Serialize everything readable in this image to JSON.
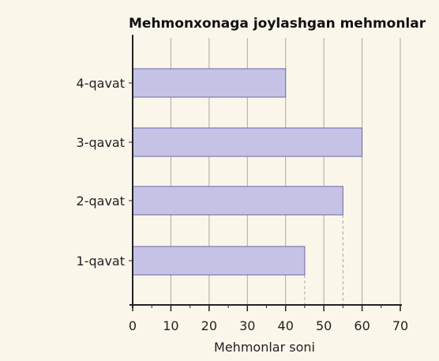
{
  "chart_data": {
    "type": "bar",
    "orientation": "horizontal",
    "title": "Mehmonxonaga joylashgan mehmonlar",
    "xlabel": "Mehmonlar soni",
    "ylabel": "",
    "categories": [
      "4-qavat",
      "3-qavat",
      "2-qavat",
      "1-qavat"
    ],
    "values": [
      40,
      60,
      55,
      45
    ],
    "xlim": [
      0,
      70
    ],
    "xticks": [
      0,
      10,
      20,
      30,
      40,
      50,
      60,
      70
    ],
    "grid": "vertical",
    "colors": {
      "background": "#fbf6ea",
      "bar_fill": "#c5c2e6",
      "bar_stroke": "#6c68a8",
      "grid": "#a9a9a9",
      "axis": "#222222"
    }
  }
}
